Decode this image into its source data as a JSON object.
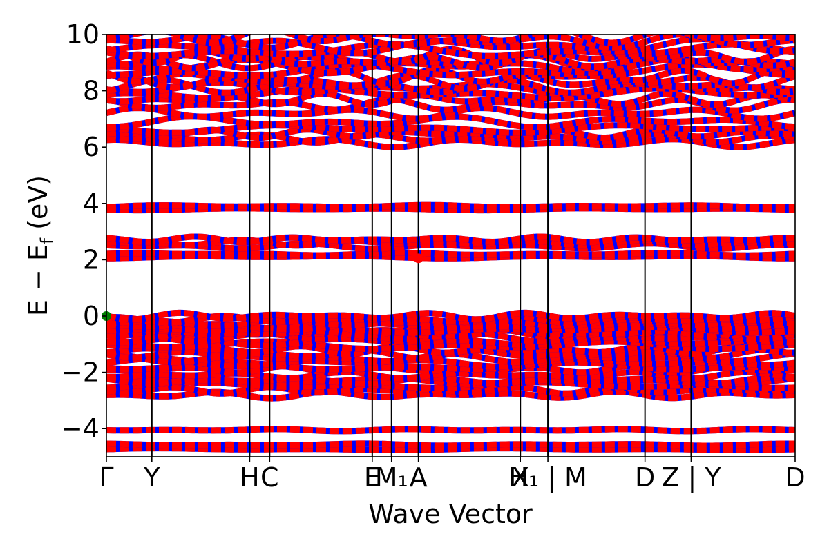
{
  "chart_data": {
    "type": "line",
    "title": "",
    "xlabel": "Wave Vector",
    "ylabel": "E − E_f (eV)",
    "ylabel_parts": {
      "pre": "E − E",
      "sub": "f",
      "post": " (eV)"
    },
    "ylim": [
      -5,
      10
    ],
    "yticks": [
      -4,
      -2,
      0,
      2,
      4,
      6,
      8,
      10
    ],
    "ytick_labels": [
      "−4",
      "−2",
      "0",
      "2",
      "4",
      "6",
      "8",
      "10"
    ],
    "kpath": [
      {
        "label": "Γ",
        "k": 0.0
      },
      {
        "label": "Y",
        "k": 0.066
      },
      {
        "label": "H",
        "k": 0.208
      },
      {
        "label": "C",
        "k": 0.237
      },
      {
        "label": "E",
        "k": 0.386
      },
      {
        "label": "M₁",
        "k": 0.414
      },
      {
        "label": "A",
        "k": 0.453
      },
      {
        "label": "X",
        "k": 0.601
      },
      {
        "label": "H₁ | M",
        "k": 0.641
      },
      {
        "label": "D",
        "k": 0.782
      },
      {
        "label": "Z | Y",
        "k": 0.849
      },
      {
        "label": "D",
        "k": 1.0
      }
    ],
    "band_groups": [
      {
        "e0": -4.65,
        "count": 2,
        "spread": 0.08,
        "amp": 0.04
      },
      {
        "e0": -4.05,
        "count": 1,
        "spread": 0.05,
        "amp": 0.04
      },
      {
        "e0": -2.55,
        "count": 4,
        "spread": 0.25,
        "amp": 0.12
      },
      {
        "e0": -2.1,
        "count": 3,
        "spread": 0.2,
        "amp": 0.12
      },
      {
        "e0": -1.2,
        "count": 9,
        "spread": 0.6,
        "amp": 0.15
      },
      {
        "e0": -0.3,
        "count": 6,
        "spread": 0.3,
        "amp": 0.12
      },
      {
        "e0": 2.15,
        "count": 2,
        "spread": 0.05,
        "amp": 0.05
      },
      {
        "e0": 2.6,
        "count": 3,
        "spread": 0.12,
        "amp": 0.1
      },
      {
        "e0": 3.85,
        "count": 2,
        "spread": 0.05,
        "amp": 0.04
      },
      {
        "e0": 6.4,
        "count": 4,
        "spread": 0.25,
        "amp": 0.15
      },
      {
        "e0": 7.2,
        "count": 3,
        "spread": 0.3,
        "amp": 0.2
      },
      {
        "e0": 7.9,
        "count": 3,
        "spread": 0.2,
        "amp": 0.2
      },
      {
        "e0": 8.6,
        "count": 6,
        "spread": 0.45,
        "amp": 0.25
      },
      {
        "e0": 9.5,
        "count": 6,
        "spread": 0.45,
        "amp": 0.25
      }
    ],
    "vbm_marker": {
      "k": 0.0,
      "e": 0.0,
      "color": "#008000"
    },
    "cbm_marker": {
      "k": 0.453,
      "e": 2.05,
      "color": "#ff0000"
    },
    "colors": {
      "primary": "#ff0000",
      "secondary": "#0000ff",
      "axis": "#000000"
    },
    "grid": false
  }
}
